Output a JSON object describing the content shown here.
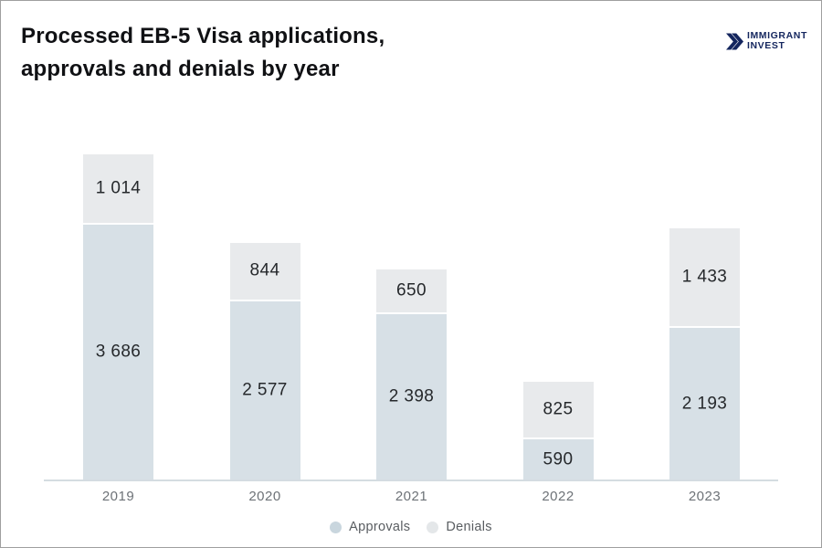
{
  "header": {
    "title_line1": "Processed EB-5 Visa applications,",
    "title_line2": "approvals and denials by year",
    "logo": {
      "line1": "IMMIGRANT",
      "line2": "INVEST",
      "icon": "double-chevron-right-icon",
      "color": "#14265e"
    }
  },
  "chart_data": {
    "type": "bar",
    "stacked": true,
    "title": "Processed EB-5 Visa applications, approvals and denials by year",
    "categories": [
      "2019",
      "2020",
      "2021",
      "2022",
      "2023"
    ],
    "series": [
      {
        "name": "Approvals",
        "color": "#d7e0e6",
        "values": [
          3686,
          2577,
          2398,
          590,
          2193
        ],
        "labels": [
          "3 686",
          "2 577",
          "2 398",
          "590",
          "2 193"
        ]
      },
      {
        "name": "Denials",
        "color": "#e8eaec",
        "values": [
          1014,
          844,
          650,
          825,
          1433
        ],
        "labels": [
          "1 014",
          "844",
          "650",
          "825",
          "1 433"
        ]
      }
    ],
    "stack_order_bottom_to_top": [
      "Approvals",
      "Denials"
    ],
    "totals": [
      4700,
      3421,
      3048,
      1415,
      3626
    ],
    "ylim": [
      0,
      4700
    ],
    "grid": false,
    "xlabel": "",
    "ylabel": "",
    "legend_position": "bottom-center",
    "value_label_color": "#26292c",
    "axis_line_color": "#d4dce1",
    "category_label_color": "#6d7277"
  },
  "legend": {
    "items": [
      {
        "label": "Approvals",
        "color": "#c9d6de"
      },
      {
        "label": "Denials",
        "color": "#e4e7e9"
      }
    ]
  }
}
